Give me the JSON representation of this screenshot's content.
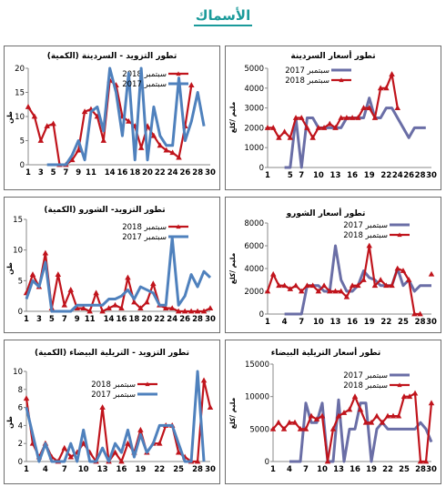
{
  "page": {
    "title": "الأسماك"
  },
  "colors": {
    "red": "#c0141c",
    "blue": "#6a6ea6",
    "blue_light": "#4f81bd"
  },
  "chart_data": [
    {
      "id": "sardine-price",
      "type": "line",
      "title": "تطور أسعار السردينة",
      "ylabel": "مليم /كلغ",
      "ylim": [
        0,
        5000
      ],
      "yticks": [
        0,
        1000,
        2000,
        3000,
        4000,
        5000
      ],
      "x": [
        1,
        2,
        3,
        4,
        5,
        6,
        7,
        8,
        9,
        10,
        11,
        12,
        13,
        14,
        15,
        16,
        17,
        18,
        19,
        20,
        21,
        22,
        23,
        24,
        25,
        26,
        27,
        28,
        29,
        30
      ],
      "xticks": [
        1,
        5,
        7,
        10,
        13,
        16,
        19,
        22,
        24,
        26,
        28,
        30
      ],
      "legend": "top-left",
      "series": [
        {
          "name": "سبتمبر 2017",
          "color": "#6a6ea6",
          "marker": "none",
          "values": [
            null,
            null,
            null,
            0,
            0,
            2500,
            0,
            2500,
            2500,
            2000,
            2000,
            2000,
            2000,
            2000,
            2500,
            2500,
            2500,
            2500,
            3500,
            2500,
            2500,
            3000,
            3000,
            2500,
            2000,
            1500,
            2000,
            2000,
            2000,
            null
          ]
        },
        {
          "name": "سبتمبر 2018",
          "color": "#c0141c",
          "marker": "triangle",
          "values": [
            2000,
            2000,
            1500,
            1800,
            1500,
            2500,
            2500,
            2000,
            1500,
            2000,
            2000,
            2200,
            2000,
            2500,
            2500,
            2500,
            2500,
            3000,
            3000,
            2500,
            4000,
            4000,
            4700,
            3000,
            null,
            null,
            null,
            null,
            null,
            null
          ]
        }
      ]
    },
    {
      "id": "sardine-supply",
      "type": "line",
      "title": "تطور التزويد - السردينة (الكمية)",
      "ylabel": "طن",
      "ylim": [
        0,
        20
      ],
      "yticks": [
        0,
        5,
        10,
        15,
        20
      ],
      "x": [
        1,
        2,
        3,
        4,
        5,
        6,
        7,
        8,
        9,
        10,
        11,
        12,
        13,
        14,
        15,
        16,
        17,
        18,
        19,
        20,
        21,
        22,
        23,
        24,
        25,
        26,
        27,
        28,
        29,
        30
      ],
      "xticks": [
        1,
        3,
        5,
        7,
        9,
        11,
        14,
        16,
        18,
        20,
        22,
        24,
        26,
        28,
        30
      ],
      "legend": "top-right",
      "series": [
        {
          "name": "سبتمبر 2018",
          "color": "#c0141c",
          "marker": "triangle",
          "values": [
            12,
            10,
            5,
            8,
            8.5,
            0,
            0,
            1,
            3,
            11,
            11.5,
            10,
            5,
            17.5,
            16.5,
            10,
            9,
            8,
            3.5,
            8,
            6,
            4,
            3,
            2.5,
            1.5,
            8,
            16.5,
            null,
            null,
            null
          ]
        },
        {
          "name": "سبتمبر 2017",
          "color": "#4f81bd",
          "marker": "none",
          "values": [
            null,
            null,
            null,
            0,
            0,
            0,
            0,
            2,
            5,
            1,
            11,
            12,
            7,
            20,
            15,
            6,
            19,
            1,
            20,
            1,
            12,
            6,
            4,
            4,
            18,
            5,
            9,
            15,
            8,
            null
          ]
        }
      ]
    },
    {
      "id": "shorou-price",
      "type": "line",
      "title": "تطور أسعار الشورو",
      "ylabel": "مليم /كلغ",
      "ylim": [
        0,
        8000
      ],
      "yticks": [
        0,
        2000,
        4000,
        6000,
        8000
      ],
      "x": [
        1,
        2,
        3,
        4,
        5,
        6,
        7,
        8,
        9,
        10,
        11,
        12,
        13,
        14,
        15,
        16,
        17,
        18,
        19,
        20,
        21,
        22,
        23,
        24,
        25,
        26,
        27,
        28,
        29,
        30
      ],
      "xticks": [
        1,
        4,
        7,
        10,
        13,
        16,
        19,
        22,
        25,
        28,
        30
      ],
      "legend": "top-right",
      "series": [
        {
          "name": "سبتمبر 2017",
          "color": "#6a6ea6",
          "marker": "none",
          "values": [
            null,
            null,
            null,
            0,
            0,
            0,
            0,
            2500,
            2500,
            2500,
            2000,
            2000,
            6000,
            3000,
            2000,
            2000,
            2500,
            3800,
            3200,
            3000,
            2500,
            2500,
            2500,
            4000,
            2500,
            3000,
            2000,
            2500,
            2500,
            2500
          ]
        },
        {
          "name": "سبتمبر 2018",
          "color": "#c0141c",
          "marker": "triangle",
          "values": [
            2000,
            3500,
            2500,
            2500,
            2200,
            2500,
            2000,
            2500,
            2500,
            2000,
            2500,
            2000,
            2000,
            2000,
            1500,
            2500,
            2500,
            3000,
            6000,
            2500,
            3000,
            2500,
            2500,
            4000,
            3800,
            3000,
            0,
            0,
            null,
            3500
          ]
        }
      ]
    },
    {
      "id": "shorou-supply",
      "type": "line",
      "title": "تطور التزويد- الشورو (الكمية)",
      "ylabel": "طن",
      "ylim": [
        0,
        15
      ],
      "yticks": [
        0,
        5,
        10,
        15
      ],
      "x": [
        1,
        2,
        3,
        4,
        5,
        6,
        7,
        8,
        9,
        10,
        11,
        12,
        13,
        14,
        15,
        16,
        17,
        18,
        19,
        20,
        21,
        22,
        23,
        24,
        25,
        26,
        27,
        28,
        29,
        30
      ],
      "xticks": [
        1,
        3,
        5,
        7,
        9,
        11,
        14,
        16,
        18,
        20,
        22,
        24,
        26,
        28,
        30
      ],
      "legend": "top-right",
      "series": [
        {
          "name": "سبتمبر 2018",
          "color": "#c0141c",
          "marker": "triangle",
          "values": [
            3,
            6,
            4,
            9.5,
            0.5,
            6,
            1,
            3.5,
            0.5,
            0.5,
            0,
            3,
            0,
            0.5,
            1,
            0.5,
            5.5,
            1.5,
            0.5,
            1.5,
            4.5,
            1,
            0.5,
            0.5,
            0,
            0,
            0,
            0,
            0,
            0.5
          ]
        },
        {
          "name": "سبتمبر 2017",
          "color": "#4f81bd",
          "marker": "none",
          "values": [
            2,
            5,
            4,
            8,
            0,
            0,
            0,
            0,
            1,
            1,
            1,
            1,
            1,
            2,
            2,
            2.5,
            3.5,
            2,
            4,
            3.5,
            3,
            1,
            1,
            12,
            1,
            2.5,
            6,
            4,
            6.5,
            5.5
          ]
        }
      ]
    },
    {
      "id": "bream-price",
      "type": "line",
      "title": "تطور أسعار التريلية البيضاء",
      "ylabel": "مليم /كلغ",
      "ylim": [
        0,
        15000
      ],
      "yticks": [
        0,
        5000,
        10000,
        15000
      ],
      "x": [
        1,
        2,
        3,
        4,
        5,
        6,
        7,
        8,
        9,
        10,
        11,
        12,
        13,
        14,
        15,
        16,
        17,
        18,
        19,
        20,
        21,
        22,
        23,
        24,
        25,
        26,
        27,
        28,
        29,
        30
      ],
      "xticks": [
        1,
        4,
        7,
        10,
        13,
        16,
        19,
        22,
        25,
        28,
        30
      ],
      "legend": "top-right",
      "series": [
        {
          "name": "سبتمبر 2017",
          "color": "#6a6ea6",
          "marker": "none",
          "values": [
            null,
            null,
            null,
            0,
            0,
            0,
            9000,
            6000,
            6000,
            9000,
            0,
            0,
            9500,
            0,
            5000,
            5000,
            9000,
            9000,
            0,
            5000,
            6000,
            5000,
            5000,
            5000,
            5000,
            5000,
            5000,
            6000,
            5000,
            3000
          ]
        },
        {
          "name": "سبتمبر 2018",
          "color": "#c0141c",
          "marker": "triangle",
          "values": [
            5000,
            6000,
            5000,
            6000,
            6000,
            5000,
            5000,
            7000,
            6500,
            7000,
            0,
            5000,
            7000,
            7500,
            8000,
            10000,
            8000,
            6000,
            6000,
            7000,
            6000,
            7000,
            7000,
            7000,
            10000,
            10000,
            10500,
            0,
            0,
            9000
          ]
        }
      ]
    },
    {
      "id": "bream-supply",
      "type": "line",
      "title": "تطور التزويد - التريلية البيضاء (الكمية)",
      "ylabel": "طن",
      "ylim": [
        0,
        10
      ],
      "yticks": [
        0,
        2,
        4,
        6,
        8,
        10
      ],
      "x": [
        1,
        2,
        3,
        4,
        5,
        6,
        7,
        8,
        9,
        10,
        11,
        12,
        13,
        14,
        15,
        16,
        17,
        18,
        19,
        20,
        21,
        22,
        23,
        24,
        25,
        26,
        27,
        28,
        29,
        30
      ],
      "xticks": [
        1,
        4,
        7,
        10,
        13,
        16,
        19,
        22,
        25,
        28,
        30
      ],
      "legend": "top-right",
      "series": [
        {
          "name": "سبتمبر 2018",
          "color": "#c0141c",
          "marker": "triangle",
          "values": [
            7,
            2,
            0.5,
            2,
            0.5,
            0,
            1.5,
            0.5,
            1,
            2,
            1,
            0,
            6,
            0,
            1,
            0,
            2,
            1,
            3.5,
            1,
            2,
            2,
            4,
            4,
            1,
            0.5,
            0,
            0,
            9,
            6
          ]
        },
        {
          "name": "سبتمبر 2017",
          "color": "#4f81bd",
          "marker": "none",
          "values": [
            6,
            3,
            0,
            2,
            0,
            0,
            0,
            2,
            0,
            3.5,
            0,
            0,
            1.5,
            0,
            2,
            1,
            3.5,
            0.5,
            3,
            1,
            2,
            4,
            4,
            4,
            2,
            0,
            0,
            10,
            0,
            null
          ]
        }
      ]
    }
  ]
}
